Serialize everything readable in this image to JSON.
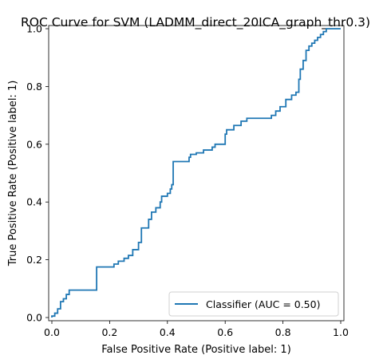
{
  "chart_data": {
    "type": "line",
    "title": "ROC Curve for SVM (LADMM_direct_20ICA_graph_thr0.3)",
    "xlabel": "False Positive Rate (Positive label: 1)",
    "ylabel": "True Positive Rate (Positive label: 1)",
    "xlim": [
      0,
      1
    ],
    "ylim": [
      0,
      1
    ],
    "xticks": [
      "0.0",
      "0.2",
      "0.4",
      "0.6",
      "0.8",
      "1.0"
    ],
    "yticks": [
      "0.0",
      "0.2",
      "0.4",
      "0.6",
      "0.8",
      "1.0"
    ],
    "grid": false,
    "legend_position": "lower-right",
    "series": [
      {
        "name": "Classifier (AUC = 0.50)",
        "color": "#1f77b4",
        "x": [
          0.0,
          0.0,
          0.01,
          0.01,
          0.02,
          0.02,
          0.03,
          0.03,
          0.04,
          0.04,
          0.05,
          0.05,
          0.06,
          0.06,
          0.155,
          0.155,
          0.215,
          0.215,
          0.23,
          0.23,
          0.25,
          0.25,
          0.265,
          0.265,
          0.28,
          0.28,
          0.3,
          0.3,
          0.31,
          0.31,
          0.335,
          0.335,
          0.345,
          0.345,
          0.36,
          0.36,
          0.375,
          0.375,
          0.38,
          0.38,
          0.4,
          0.4,
          0.41,
          0.41,
          0.415,
          0.415,
          0.42,
          0.42,
          0.475,
          0.475,
          0.48,
          0.48,
          0.5,
          0.5,
          0.525,
          0.525,
          0.555,
          0.555,
          0.565,
          0.565,
          0.6,
          0.6,
          0.605,
          0.605,
          0.63,
          0.63,
          0.655,
          0.655,
          0.675,
          0.675,
          0.76,
          0.76,
          0.775,
          0.775,
          0.79,
          0.79,
          0.81,
          0.81,
          0.83,
          0.83,
          0.845,
          0.845,
          0.855,
          0.855,
          0.86,
          0.86,
          0.87,
          0.87,
          0.88,
          0.88,
          0.89,
          0.89,
          0.9,
          0.9,
          0.91,
          0.91,
          0.92,
          0.92,
          0.93,
          0.93,
          0.94,
          0.94,
          0.95,
          0.95,
          0.96,
          0.96,
          0.97,
          0.97,
          0.98,
          0.98,
          0.99,
          0.99,
          1.0
        ],
        "y": [
          0.0,
          0.005,
          0.005,
          0.015,
          0.015,
          0.03,
          0.03,
          0.055,
          0.055,
          0.065,
          0.065,
          0.08,
          0.08,
          0.095,
          0.095,
          0.175,
          0.175,
          0.185,
          0.185,
          0.195,
          0.195,
          0.205,
          0.205,
          0.215,
          0.215,
          0.235,
          0.235,
          0.26,
          0.26,
          0.31,
          0.31,
          0.34,
          0.34,
          0.365,
          0.365,
          0.38,
          0.38,
          0.4,
          0.4,
          0.42,
          0.42,
          0.43,
          0.43,
          0.445,
          0.445,
          0.46,
          0.46,
          0.54,
          0.54,
          0.555,
          0.555,
          0.565,
          0.565,
          0.57,
          0.57,
          0.58,
          0.58,
          0.59,
          0.59,
          0.6,
          0.6,
          0.635,
          0.635,
          0.65,
          0.65,
          0.665,
          0.665,
          0.68,
          0.68,
          0.69,
          0.69,
          0.7,
          0.7,
          0.715,
          0.715,
          0.73,
          0.73,
          0.755,
          0.755,
          0.77,
          0.77,
          0.78,
          0.78,
          0.825,
          0.825,
          0.86,
          0.86,
          0.89,
          0.89,
          0.925,
          0.925,
          0.94,
          0.94,
          0.95,
          0.95,
          0.96,
          0.96,
          0.97,
          0.97,
          0.98,
          0.98,
          0.99,
          0.99,
          1.0,
          1.0,
          1.0,
          1.0,
          1.0,
          1.0,
          1.0,
          1.0,
          1.0,
          1.0
        ]
      }
    ]
  }
}
